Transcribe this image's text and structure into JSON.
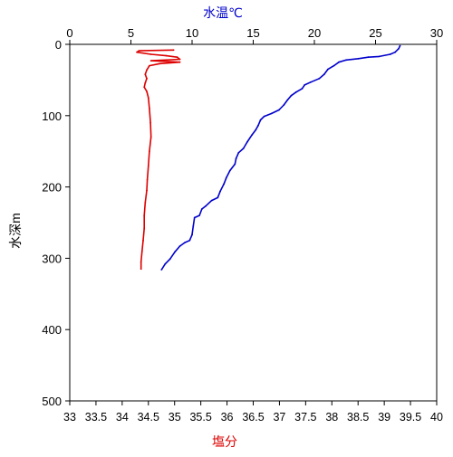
{
  "chart_data": {
    "type": "line",
    "top_axis_label": "水温℃",
    "bottom_axis_label": "塩分",
    "left_axis_label": "水深m",
    "top_axis": {
      "range": [
        0,
        30
      ],
      "ticks": [
        0,
        5,
        10,
        15,
        20,
        25,
        30
      ]
    },
    "bottom_axis": {
      "range": [
        33,
        40
      ],
      "ticks": [
        33,
        33.5,
        34,
        34.5,
        35,
        35.5,
        36,
        36.5,
        37,
        37.5,
        38,
        38.5,
        39,
        39.5,
        40
      ]
    },
    "left_axis": {
      "range": [
        0,
        500
      ],
      "inverted": true,
      "ticks": [
        0,
        100,
        200,
        300,
        400,
        500
      ]
    },
    "grid": false,
    "series": [
      {
        "axis": "top",
        "color": "#0000cc",
        "points": [
          [
            27.0,
            2
          ],
          [
            26.9,
            6
          ],
          [
            26.6,
            11
          ],
          [
            26.2,
            14
          ],
          [
            25.3,
            17
          ],
          [
            24.4,
            18
          ],
          [
            23.6,
            20
          ],
          [
            22.6,
            22
          ],
          [
            22.0,
            25
          ],
          [
            21.6,
            30
          ],
          [
            21.1,
            35
          ],
          [
            20.8,
            42
          ],
          [
            20.4,
            48
          ],
          [
            19.7,
            53
          ],
          [
            19.2,
            57
          ],
          [
            19.0,
            62
          ],
          [
            18.5,
            67
          ],
          [
            18.1,
            72
          ],
          [
            17.8,
            78
          ],
          [
            17.5,
            85
          ],
          [
            17.1,
            92
          ],
          [
            16.5,
            97
          ],
          [
            15.9,
            101
          ],
          [
            15.6,
            106
          ],
          [
            15.4,
            114
          ],
          [
            15.2,
            120
          ],
          [
            14.9,
            127
          ],
          [
            14.5,
            137
          ],
          [
            14.2,
            146
          ],
          [
            13.8,
            152
          ],
          [
            13.6,
            160
          ],
          [
            13.5,
            168
          ],
          [
            13.1,
            177
          ],
          [
            12.8,
            187
          ],
          [
            12.6,
            196
          ],
          [
            12.3,
            206
          ],
          [
            12.1,
            215
          ],
          [
            11.6,
            219
          ],
          [
            11.1,
            227
          ],
          [
            10.8,
            231
          ],
          [
            10.6,
            240
          ],
          [
            10.2,
            243
          ],
          [
            10.1,
            255
          ],
          [
            10.0,
            267
          ],
          [
            9.8,
            275
          ],
          [
            9.4,
            278
          ],
          [
            9.0,
            283
          ],
          [
            8.6,
            291
          ],
          [
            8.2,
            301
          ],
          [
            7.8,
            308
          ],
          [
            7.5,
            316
          ]
        ]
      },
      {
        "axis": "bottom",
        "color": "#dd0000",
        "points": [
          [
            34.98,
            8
          ],
          [
            34.32,
            9
          ],
          [
            34.28,
            11
          ],
          [
            34.55,
            14
          ],
          [
            34.84,
            16
          ],
          [
            35.05,
            18
          ],
          [
            35.1,
            21
          ],
          [
            34.55,
            23
          ],
          [
            35.1,
            25
          ],
          [
            34.72,
            27
          ],
          [
            34.52,
            30
          ],
          [
            34.47,
            36
          ],
          [
            34.44,
            42
          ],
          [
            34.47,
            48
          ],
          [
            34.44,
            54
          ],
          [
            34.42,
            60
          ],
          [
            34.47,
            66
          ],
          [
            34.5,
            75
          ],
          [
            34.52,
            90
          ],
          [
            34.54,
            110
          ],
          [
            34.55,
            130
          ],
          [
            34.52,
            150
          ],
          [
            34.5,
            170
          ],
          [
            34.48,
            190
          ],
          [
            34.47,
            205
          ],
          [
            34.44,
            222
          ],
          [
            34.42,
            240
          ],
          [
            34.42,
            258
          ],
          [
            34.4,
            275
          ],
          [
            34.38,
            290
          ],
          [
            34.36,
            305
          ],
          [
            34.36,
            315
          ]
        ]
      }
    ]
  }
}
